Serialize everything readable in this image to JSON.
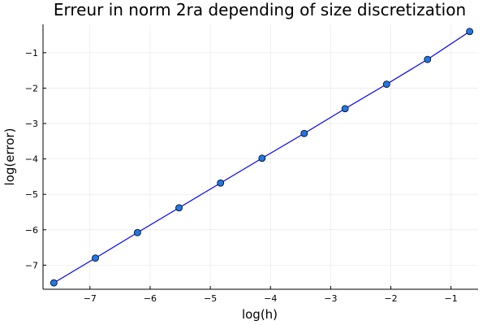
{
  "chart_data": {
    "type": "line",
    "title": "Erreur in norm 2ra depending of size discretization",
    "xlabel": "log(h)",
    "ylabel": "log(error)",
    "xlim": [
      -7.78,
      -0.55
    ],
    "ylim": [
      -7.68,
      -0.2
    ],
    "xticks": [
      -7,
      -6,
      -5,
      -4,
      -3,
      -2,
      -1
    ],
    "xtick_labels": [
      "−7",
      "−6",
      "−5",
      "−4",
      "−3",
      "−2",
      "−1"
    ],
    "yticks": [
      -7,
      -6,
      -5,
      -4,
      -3,
      -2,
      -1
    ],
    "ytick_labels": [
      "−7",
      "−6",
      "−5",
      "−4",
      "−3",
      "−2",
      "−1"
    ],
    "grid": true,
    "legend": "none",
    "series": [
      {
        "color": "#0000ff",
        "marker_color": "#1f77e8",
        "x": [
          -7.6,
          -6.91,
          -6.21,
          -5.52,
          -4.83,
          -4.14,
          -3.44,
          -2.76,
          -2.07,
          -1.39,
          -0.69
        ],
        "y": [
          -7.5,
          -6.8,
          -6.08,
          -5.38,
          -4.68,
          -3.98,
          -3.28,
          -2.58,
          -1.89,
          -1.19,
          -0.4
        ]
      }
    ]
  }
}
